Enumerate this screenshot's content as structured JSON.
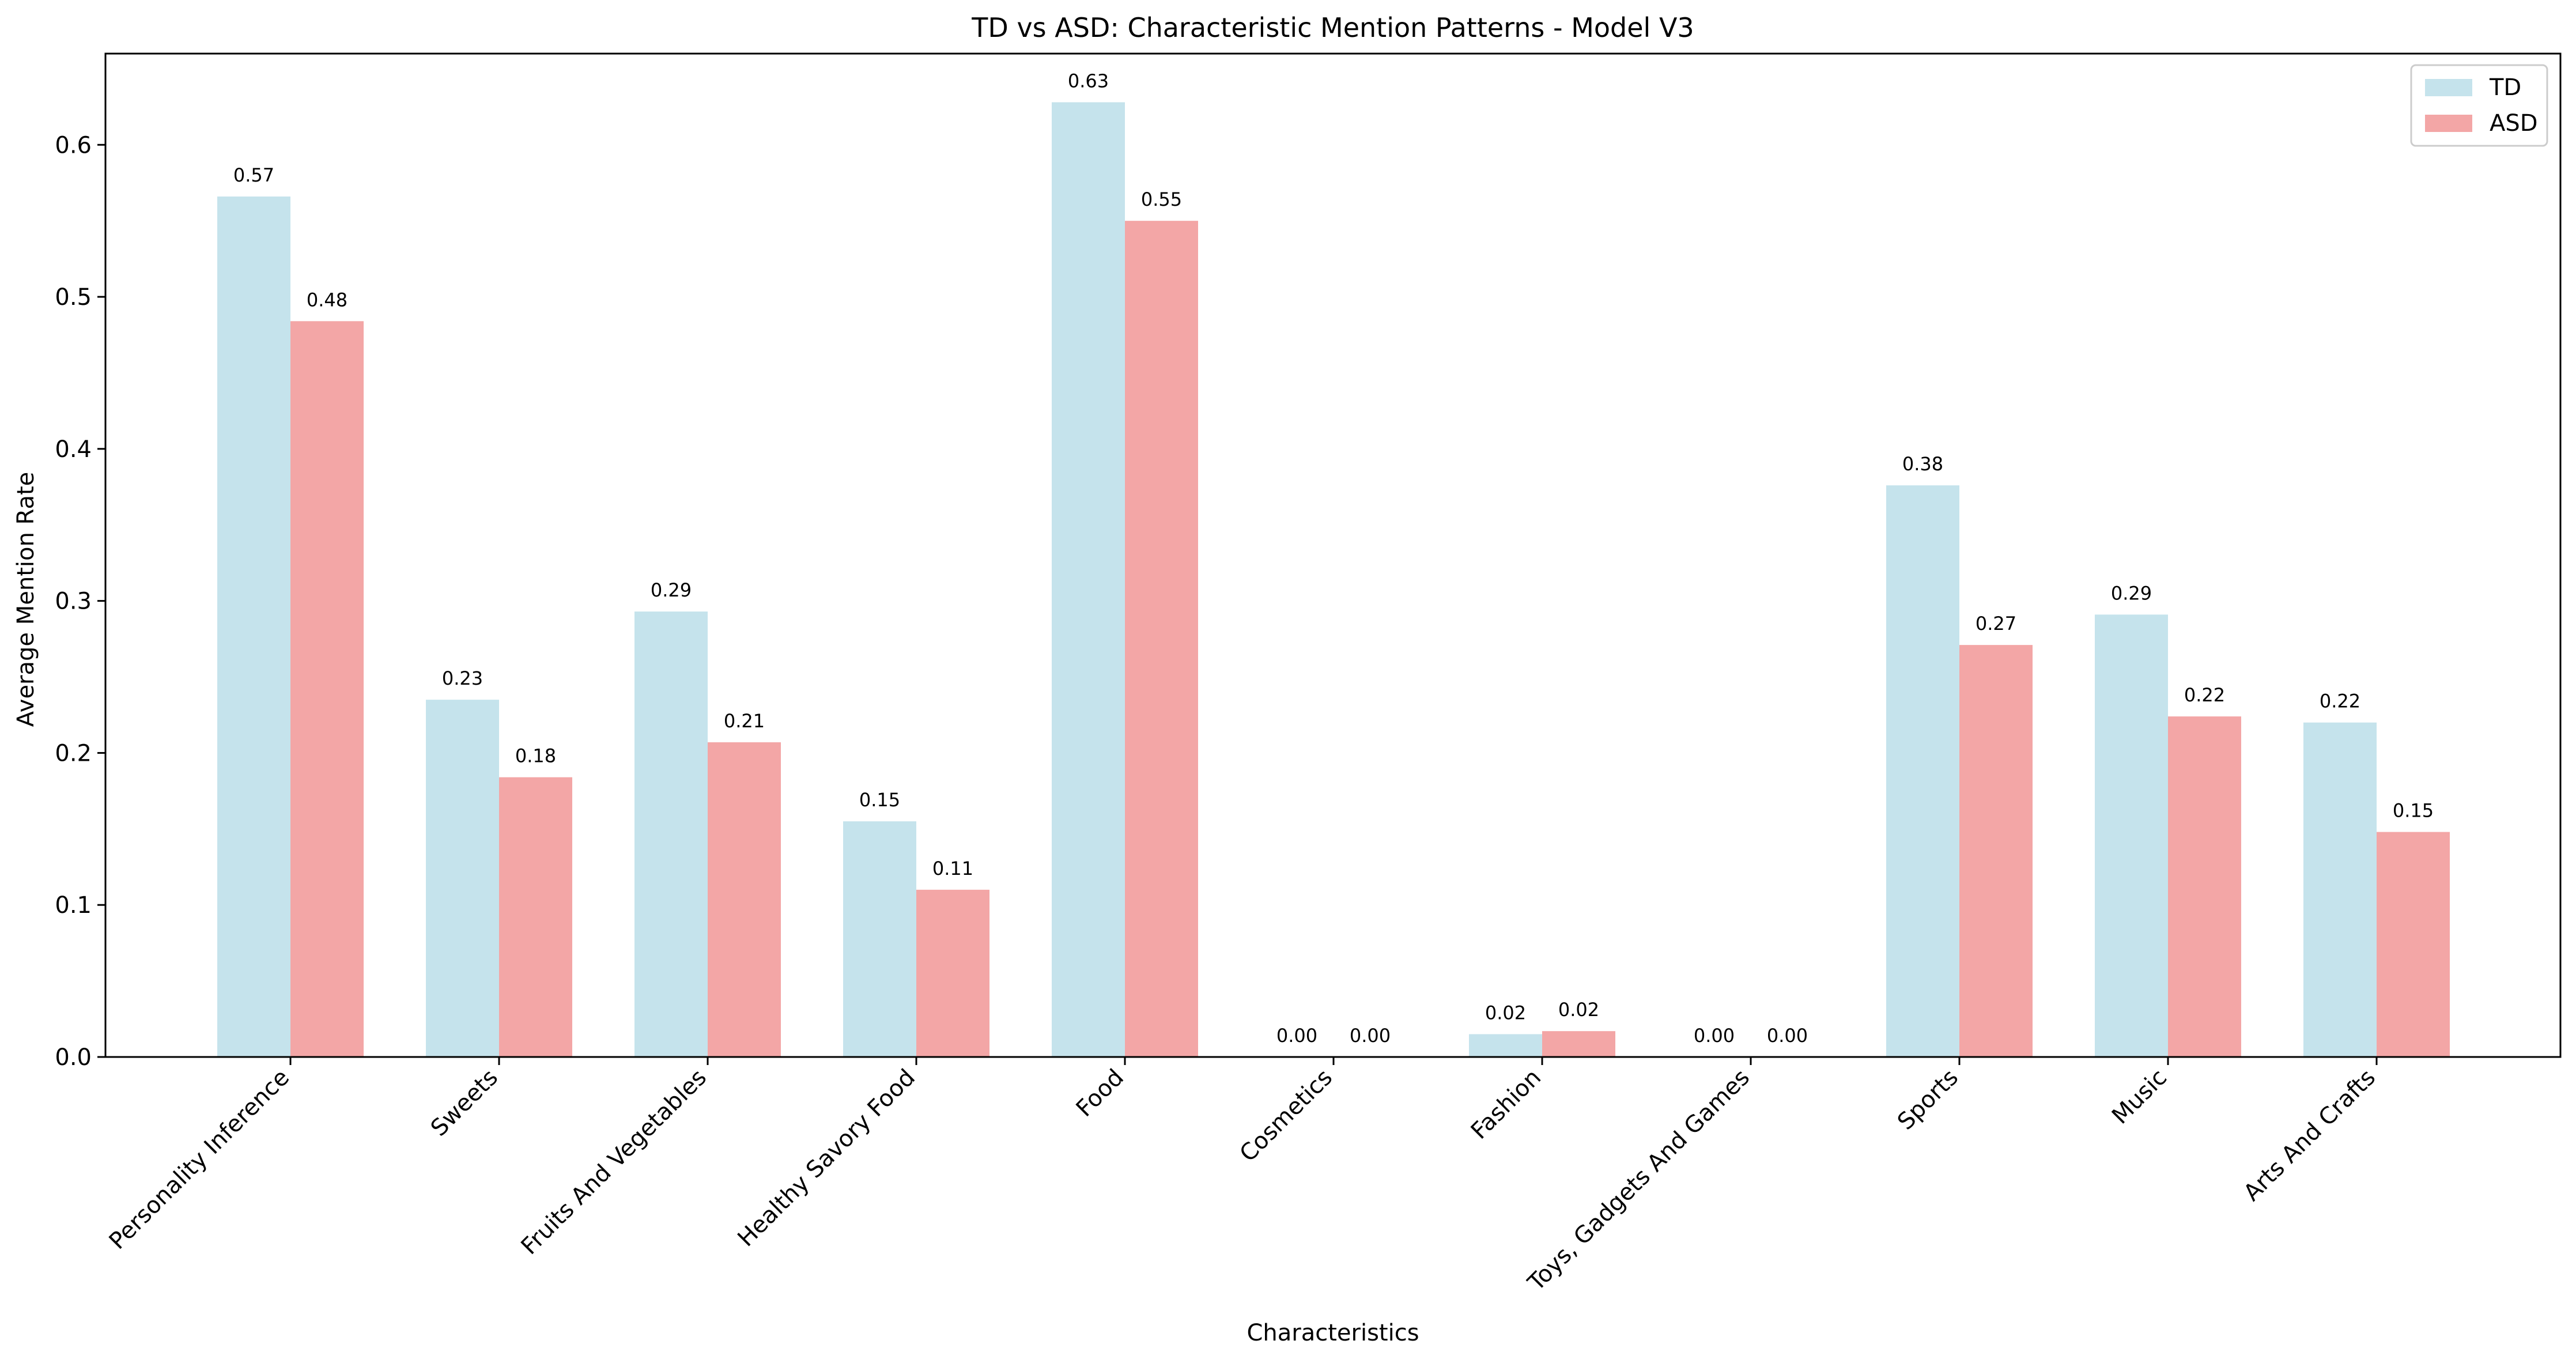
{
  "chart_data": {
    "type": "bar",
    "title": "TD vs ASD: Characteristic Mention Patterns - Model V3",
    "xlabel": "Characteristics",
    "ylabel": "Average Mention Rate",
    "ylim": [
      0,
      0.66
    ],
    "yticks": [
      0.0,
      0.1,
      0.2,
      0.3,
      0.4,
      0.5,
      0.6
    ],
    "ytick_labels": [
      "0.0",
      "0.1",
      "0.2",
      "0.3",
      "0.4",
      "0.5",
      "0.6"
    ],
    "grid": false,
    "legend_position": "top-right",
    "categories": [
      "Personality Inference",
      "Sweets",
      "Fruits And Vegetables",
      "Healthy Savory Food",
      "Food",
      "Cosmetics",
      "Fashion",
      "Toys, Gadgets And Games",
      "Sports",
      "Music",
      "Arts And Crafts"
    ],
    "series": [
      {
        "name": "TD",
        "color": "#c5e3ec",
        "values": [
          0.566,
          0.235,
          0.293,
          0.155,
          0.628,
          0.0,
          0.015,
          0.0,
          0.376,
          0.291,
          0.22
        ],
        "labels": [
          "0.57",
          "0.23",
          "0.29",
          "0.15",
          "0.63",
          "0.00",
          "0.02",
          "0.00",
          "0.38",
          "0.29",
          "0.22"
        ]
      },
      {
        "name": "ASD",
        "color": "#f3a6a6",
        "values": [
          0.484,
          0.184,
          0.207,
          0.11,
          0.55,
          0.0,
          0.017,
          0.0,
          0.271,
          0.224,
          0.148
        ],
        "labels": [
          "0.48",
          "0.18",
          "0.21",
          "0.11",
          "0.55",
          "0.00",
          "0.02",
          "0.00",
          "0.27",
          "0.22",
          "0.15"
        ]
      }
    ]
  }
}
